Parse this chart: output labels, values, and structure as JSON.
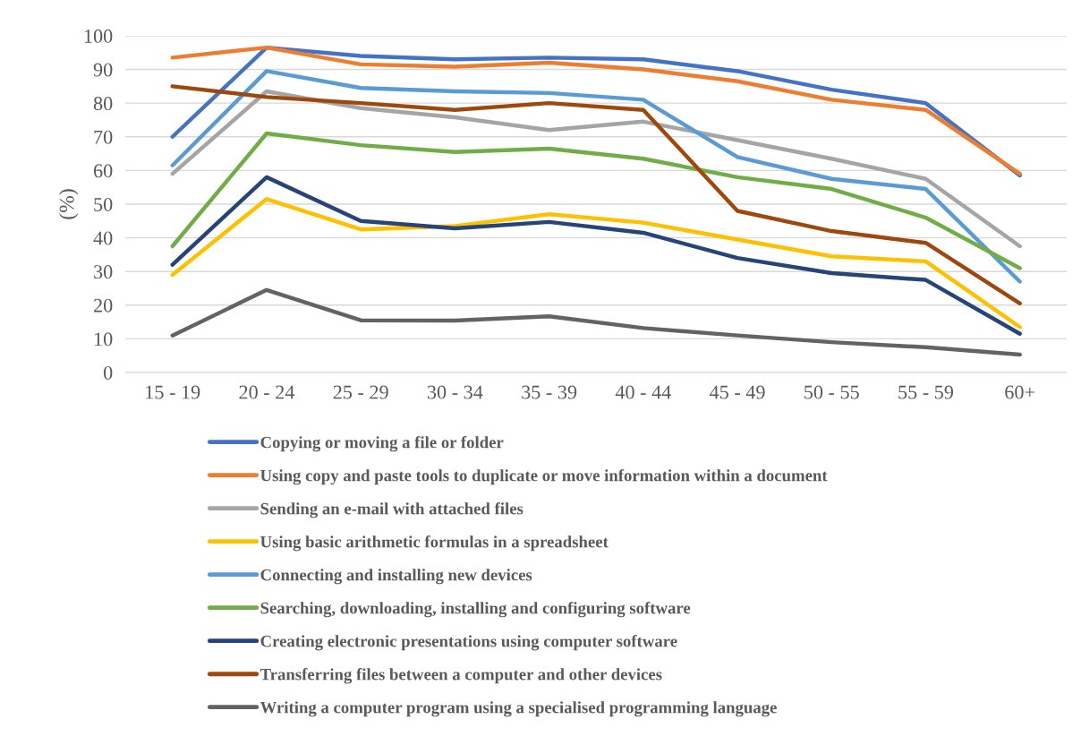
{
  "chart_data": {
    "type": "line",
    "ylabel": "(%)",
    "categories": [
      "15 - 19",
      "20 - 24",
      "25 - 29",
      "30 - 34",
      "35 - 39",
      "40 - 44",
      "45 - 49",
      "50 - 55",
      "55 - 59",
      "60+"
    ],
    "ylim": [
      0,
      100
    ],
    "yticks": [
      0,
      10,
      20,
      30,
      40,
      50,
      60,
      70,
      80,
      90,
      100
    ],
    "grid": "y",
    "legend": "bottom",
    "marker": "none",
    "line_style": "solid",
    "series": [
      {
        "name": "Copying or moving a file or folder",
        "color": "#4472c4",
        "values": [
          70,
          96.5,
          94,
          93,
          93.5,
          93,
          89.5,
          84,
          80,
          58.5
        ]
      },
      {
        "name": "Using copy and paste tools to duplicate or move information within a document",
        "color": "#ed7d31",
        "values": [
          93.5,
          96.5,
          91.5,
          90.8,
          92,
          90,
          86.5,
          81,
          78,
          59
        ]
      },
      {
        "name": "Sending an e-mail with attached files",
        "color": "#a5a5a5",
        "values": [
          59,
          83.5,
          78.5,
          75.8,
          72,
          74.5,
          69,
          63.5,
          57.5,
          37.5
        ]
      },
      {
        "name": "Using basic arithmetic formulas in a spreadsheet",
        "color": "#ffc000",
        "values": [
          29,
          51.5,
          42.5,
          43.5,
          47,
          44.5,
          39.5,
          34.5,
          33,
          13.5
        ]
      },
      {
        "name": "Connecting and installing new devices",
        "color": "#5b9bd5",
        "values": [
          61.5,
          89.5,
          84.5,
          83.5,
          83,
          81,
          64,
          57.5,
          54.5,
          27
        ]
      },
      {
        "name": "Searching, downloading, installing and configuring software",
        "color": "#70ad47",
        "values": [
          37.5,
          71,
          67.5,
          65.5,
          66.5,
          63.5,
          58,
          54.5,
          46,
          31
        ]
      },
      {
        "name": "Creating electronic presentations using computer software",
        "color": "#264478",
        "values": [
          32,
          58,
          45,
          42.8,
          44.7,
          41.5,
          34,
          29.5,
          27.5,
          11.5
        ]
      },
      {
        "name": "Transferring files between a computer and other devices",
        "color": "#9e480e",
        "values": [
          85,
          81.8,
          80,
          78,
          80,
          78,
          48,
          42,
          38.5,
          20.5
        ]
      },
      {
        "name": "Writing a computer program using a specialised programming language",
        "color": "#636363",
        "values": [
          11,
          24.5,
          15.5,
          15.4,
          16.7,
          13.2,
          11,
          9,
          7.5,
          5.3
        ]
      }
    ]
  }
}
